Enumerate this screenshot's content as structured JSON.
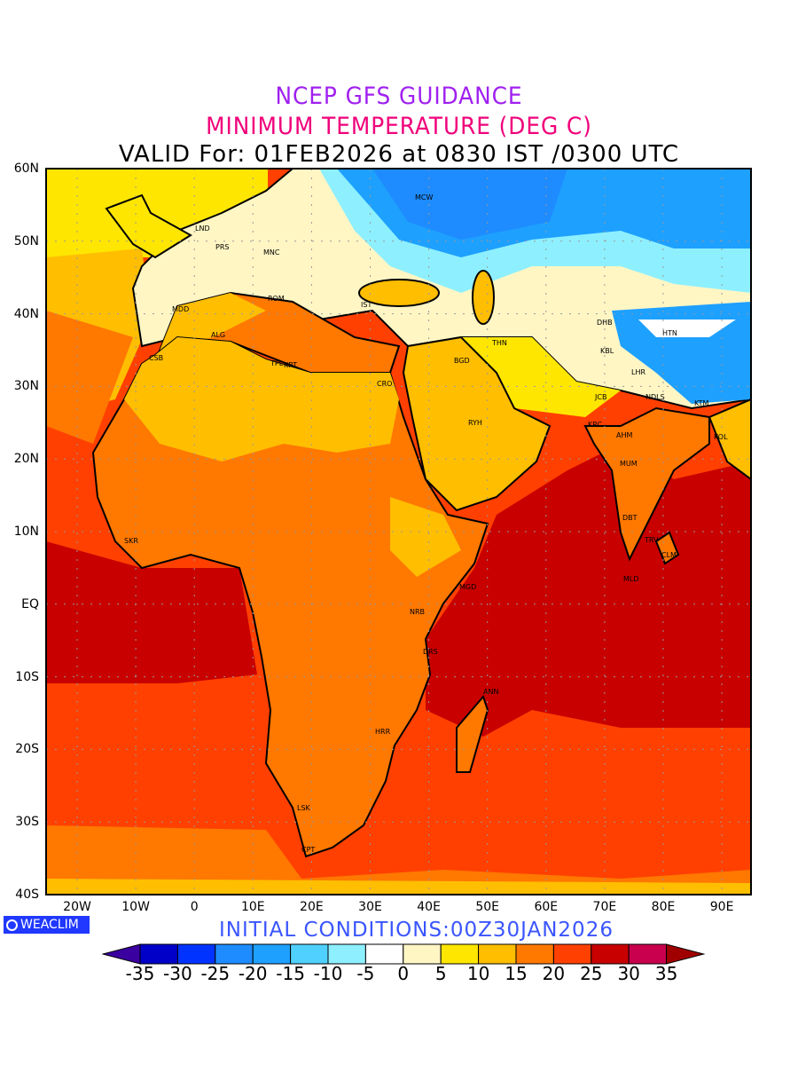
{
  "titles": {
    "line1": "NCEP GFS GUIDANCE",
    "line2": "MINIMUM TEMPERATURE (DEG C)",
    "line3": "VALID For: 01FEB2026 at 0830 IST /0300 UTC"
  },
  "initial_conditions": "INITIAL CONDITIONS:00Z30JAN2026",
  "logo": "WEACLIM",
  "axes": {
    "lat_labels": [
      "60N",
      "50N",
      "40N",
      "30N",
      "20N",
      "10N",
      "EQ",
      "10S",
      "20S",
      "30S",
      "40S"
    ],
    "lon_labels": [
      "20W",
      "10W",
      "0",
      "10E",
      "20E",
      "30E",
      "40E",
      "50E",
      "60E",
      "70E",
      "80E",
      "90E"
    ]
  },
  "colorbar": {
    "labels": [
      "-35",
      "-30",
      "-25",
      "-20",
      "-15",
      "-10",
      "-5",
      "0",
      "5",
      "10",
      "15",
      "20",
      "25",
      "30",
      "35"
    ],
    "colors": [
      "#0000c8",
      "#0033ff",
      "#1e8cff",
      "#1ea0ff",
      "#50d0ff",
      "#8ef0ff",
      "#ffffff",
      "#fff6c4",
      "#ffe600",
      "#ffbe00",
      "#ff7800",
      "#ff4000",
      "#c80000",
      "#c8004e"
    ],
    "under_color": "#3a00a0",
    "over_color": "#a00000"
  },
  "cities": [
    "MCW",
    "LND",
    "PRS",
    "MNC",
    "ROM",
    "MDD",
    "IST",
    "ALG",
    "CSB",
    "TPL",
    "KRT",
    "CRO",
    "BGD",
    "THN",
    "DHB",
    "HTN",
    "KBL",
    "LHR",
    "JCB",
    "NDLS",
    "KTM",
    "RYH",
    "KRC",
    "AHM",
    "MUM",
    "KOL",
    "DBT",
    "TRV",
    "CLM",
    "MLD",
    "SKR",
    "MGD",
    "NRB",
    "DRS",
    "ANN",
    "HRR",
    "LSK",
    "CPT"
  ]
}
